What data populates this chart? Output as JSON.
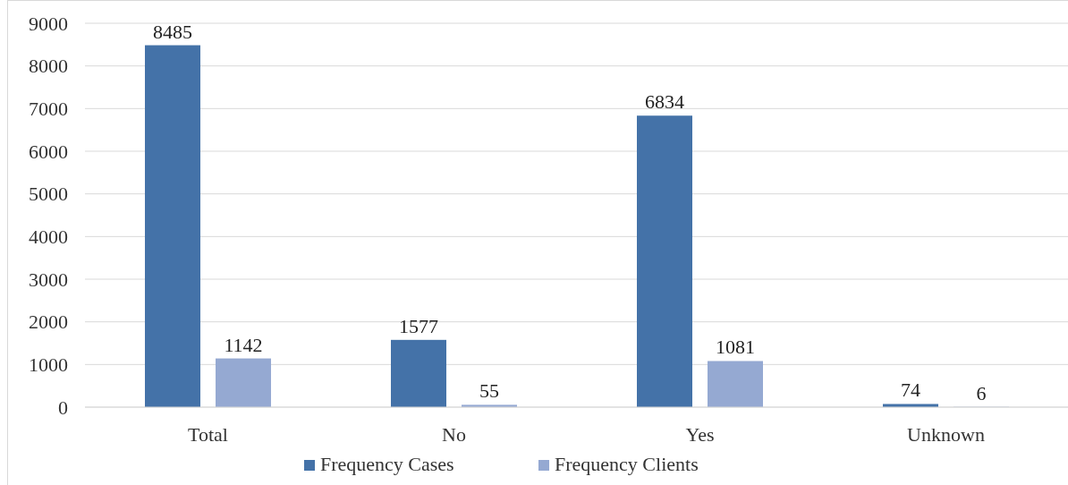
{
  "chart_data": {
    "type": "bar",
    "categories": [
      "Total",
      "No",
      "Yes",
      "Unknown"
    ],
    "series": [
      {
        "name": "Frequency Cases",
        "color": "#4472a8",
        "values": [
          8485,
          1577,
          6834,
          74
        ]
      },
      {
        "name": "Frequency Clients",
        "color": "#95a9d2",
        "values": [
          1142,
          55,
          1081,
          6
        ]
      }
    ],
    "ylim": [
      0,
      9000
    ],
    "yticks": [
      0,
      1000,
      2000,
      3000,
      4000,
      5000,
      6000,
      7000,
      8000,
      9000
    ],
    "grid": "y",
    "legend": "bottom",
    "data_labels": true
  }
}
